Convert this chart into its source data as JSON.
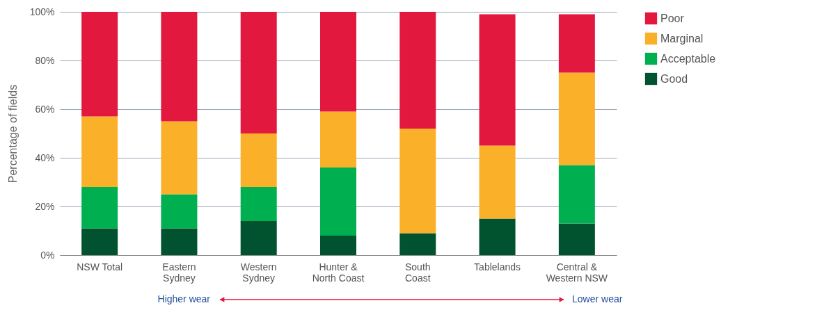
{
  "chart_data": {
    "type": "bar",
    "stacked": true,
    "ylabel": "Percentage of fields",
    "categories": [
      "NSW Total",
      "Eastern\nSydney",
      "Western\nSydney",
      "Hunter &\nNorth Coast",
      "South\nCoast",
      "Tablelands",
      "Central &\nWestern NSW"
    ],
    "series": [
      {
        "name": "Good",
        "color": "#00532e",
        "values": [
          11,
          11,
          14,
          8,
          9,
          15,
          13
        ]
      },
      {
        "name": "Acceptable",
        "color": "#00b050",
        "values": [
          17,
          14,
          14,
          28,
          0,
          0,
          24
        ]
      },
      {
        "name": "Marginal",
        "color": "#fbb02a",
        "values": [
          29,
          30,
          22,
          23,
          43,
          30,
          38
        ]
      },
      {
        "name": "Poor",
        "color": "#e3183e",
        "values": [
          43,
          45,
          50,
          41,
          48,
          54,
          24
        ]
      }
    ],
    "ylim": [
      0,
      100
    ],
    "yticks": [
      {
        "value": 0,
        "label": "0%"
      },
      {
        "value": 20,
        "label": "20%"
      },
      {
        "value": 40,
        "label": "40%"
      },
      {
        "value": 60,
        "label": "60%"
      },
      {
        "value": 80,
        "label": "80%"
      },
      {
        "value": 100,
        "label": "100%"
      }
    ],
    "grid": "y",
    "legend": "right",
    "annotations": [
      "Higher wear",
      "Lower wear"
    ]
  }
}
